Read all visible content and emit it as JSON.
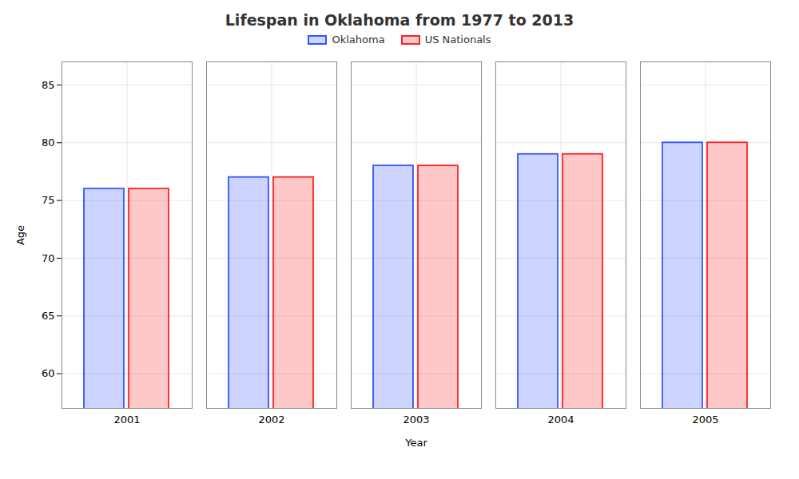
{
  "chart_data": {
    "type": "bar",
    "title": "Lifespan in Oklahoma from 1977 to 2013",
    "xlabel": "Year",
    "ylabel": "Age",
    "categories": [
      "2001",
      "2002",
      "2003",
      "2004",
      "2005"
    ],
    "series": [
      {
        "name": "Oklahoma",
        "color": "#3355ff",
        "values": [
          76,
          77,
          78,
          79,
          80
        ]
      },
      {
        "name": "US Nationals",
        "color": "#ff2222",
        "values": [
          76,
          77,
          78,
          79,
          80
        ]
      }
    ],
    "ylim": [
      57,
      87
    ],
    "yticks": [
      60,
      65,
      70,
      75,
      80,
      85
    ],
    "grid": true,
    "legend": "top"
  }
}
